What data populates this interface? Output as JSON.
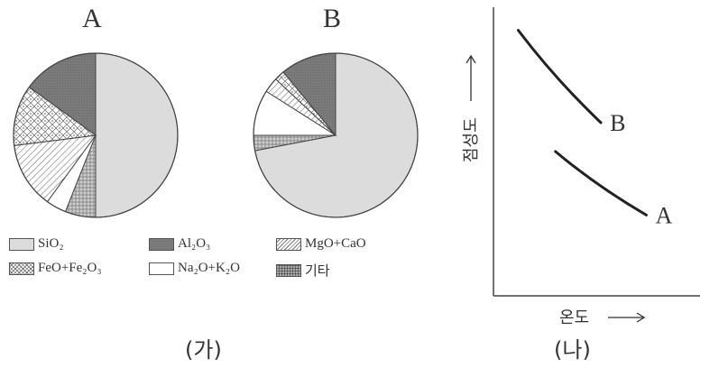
{
  "captions": {
    "left": "(가)",
    "right": "(나)"
  },
  "chart_data": [
    {
      "type": "pie",
      "title": "A",
      "categories": [
        "SiO₂",
        "Al₂O₃",
        "FeO+Fe₂O₃",
        "MgO+CaO",
        "Na₂O+K₂O",
        "기타"
      ],
      "values": [
        50,
        15,
        12,
        13,
        4,
        6
      ]
    },
    {
      "type": "pie",
      "title": "B",
      "categories": [
        "SiO₂",
        "Al₂O₃",
        "FeO+Fe₂O₃",
        "MgO+CaO",
        "Na₂O+K₂O",
        "기타"
      ],
      "values": [
        72,
        11,
        2,
        3,
        9,
        3
      ]
    },
    {
      "type": "line",
      "xlabel": "온도",
      "ylabel": "점성도",
      "grid": false,
      "series": [
        {
          "name": "B",
          "points": [
            [
              0.12,
              0.92
            ],
            [
              0.3,
              0.75
            ],
            [
              0.52,
              0.6
            ]
          ]
        },
        {
          "name": "A",
          "points": [
            [
              0.3,
              0.5
            ],
            [
              0.5,
              0.38
            ],
            [
              0.74,
              0.28
            ]
          ]
        }
      ]
    }
  ],
  "legend": [
    {
      "label": "SiO₂",
      "pattern": "sio2"
    },
    {
      "label": "Al₂O₃",
      "pattern": "al2o3"
    },
    {
      "label": "MgO+CaO",
      "pattern": "mgo"
    },
    {
      "label": "FeO+Fe₂O₃",
      "pattern": "feo"
    },
    {
      "label": "Na₂O+K₂O",
      "pattern": "na2o"
    },
    {
      "label": "기타",
      "pattern": "etc"
    }
  ],
  "colors": {
    "sio2": "#dcdcdc",
    "al2o3": "#7a7a7a",
    "na2o": "#ffffff",
    "outline": "#444444",
    "line": "#222222"
  }
}
